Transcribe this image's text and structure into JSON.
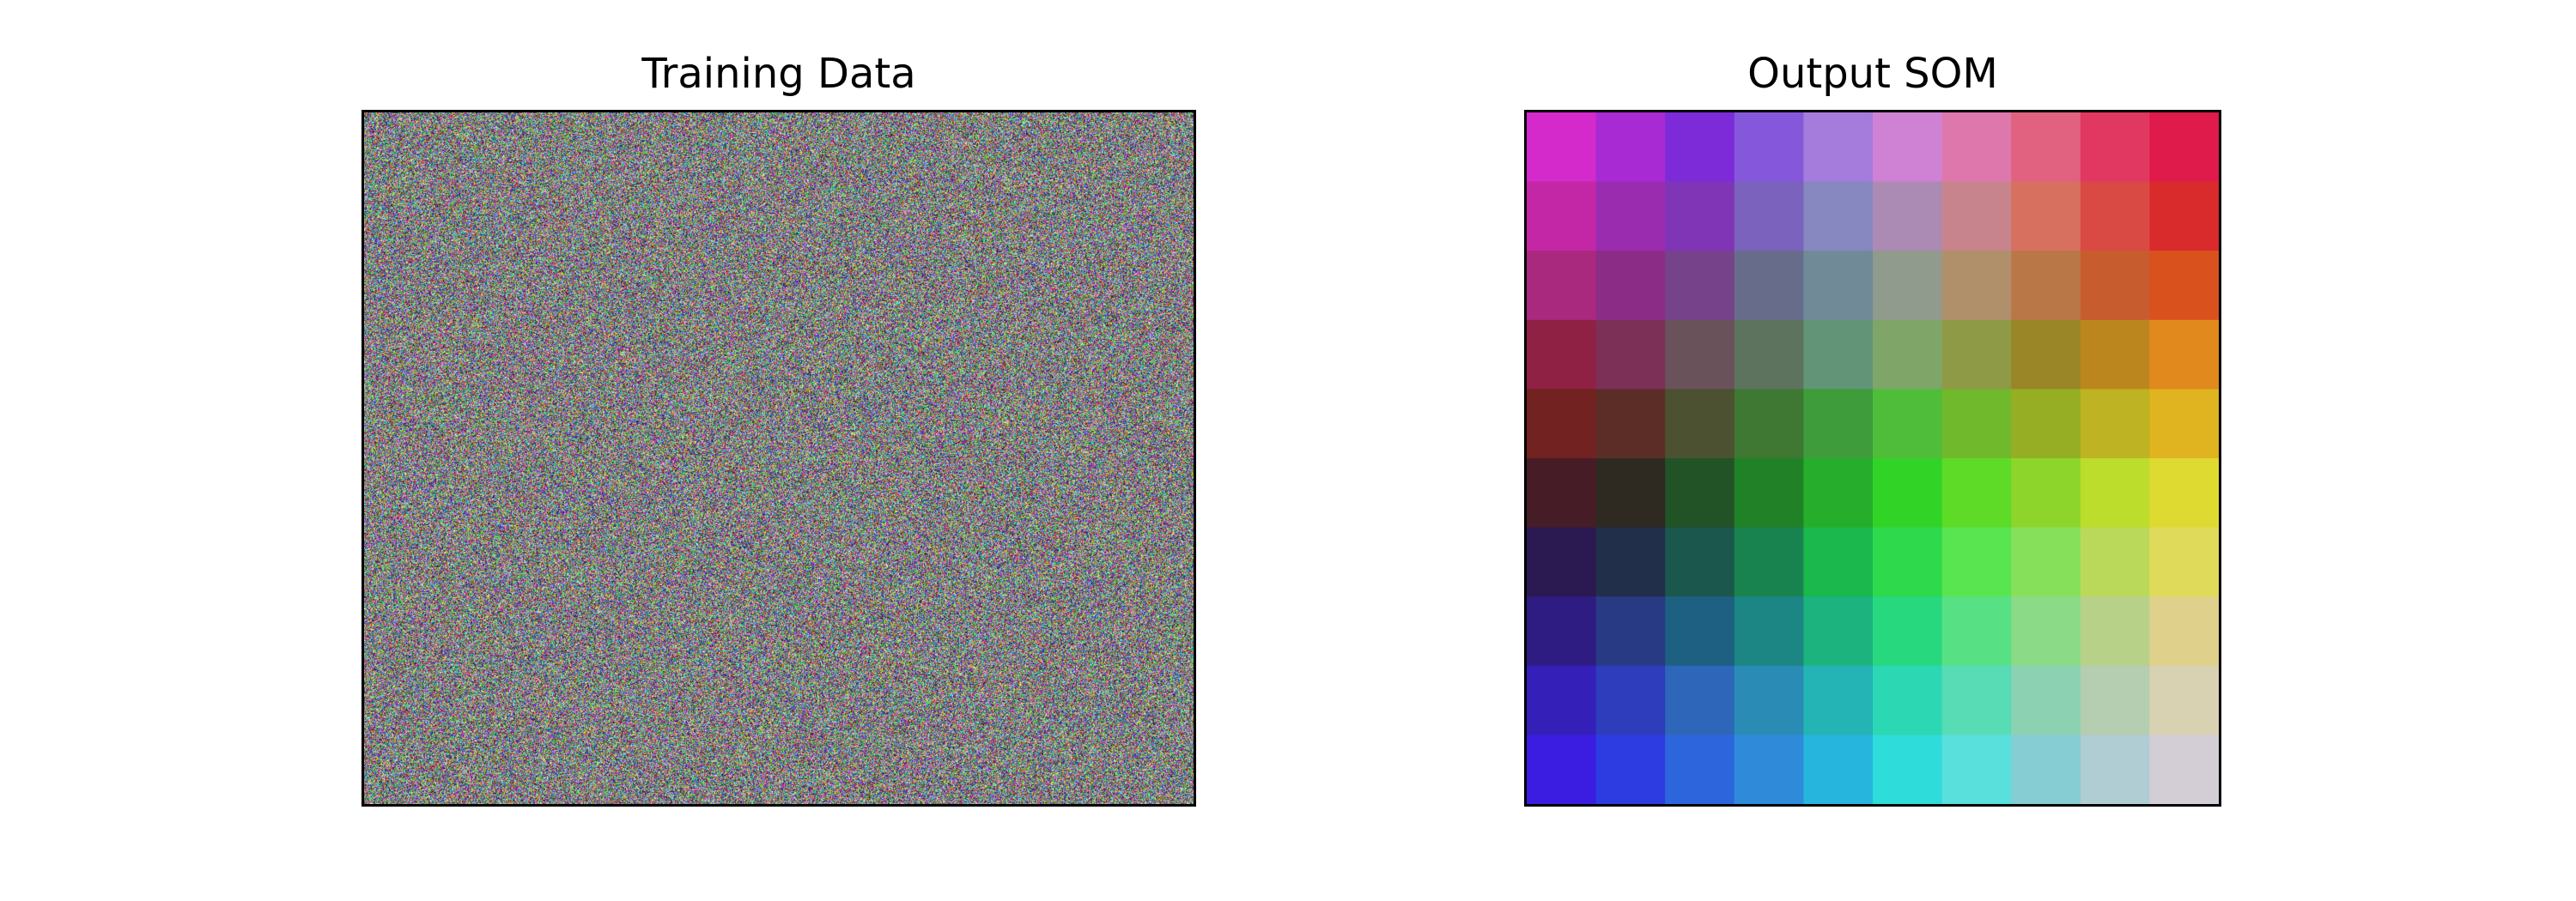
{
  "chart_data": [
    {
      "type": "heatmap",
      "title": "Training Data",
      "description_kind": "random RGB noise image",
      "axes_visible": false
    },
    {
      "type": "heatmap",
      "title": "Output SOM",
      "rows": 10,
      "cols": 10,
      "axes_visible": false,
      "cells": [
        [
          "#d42acb",
          "#a82ad3",
          "#7d2bd9",
          "#8558db",
          "#a57bdc",
          "#cf82d4",
          "#de78ac",
          "#e06180",
          "#e13861",
          "#de1b4b"
        ],
        [
          "#c427a5",
          "#9a2cb0",
          "#7f35b5",
          "#7b62bd",
          "#8888c1",
          "#ab8ab3",
          "#c8848d",
          "#d8705f",
          "#da4a45",
          "#d92b2c"
        ],
        [
          "#a9297e",
          "#8b2d86",
          "#76438b",
          "#686c8b",
          "#708a98",
          "#919b8d",
          "#b08f6b",
          "#b97747",
          "#c75d2e",
          "#d9521e"
        ],
        [
          "#8e2144",
          "#7c3058",
          "#6a525b",
          "#5d735e",
          "#629577",
          "#7fa569",
          "#8f9a46",
          "#9a8626",
          "#bb861e",
          "#e2891e"
        ],
        [
          "#732222",
          "#5c2d27",
          "#4b5131",
          "#3f7832",
          "#3f9c3b",
          "#4fbd3a",
          "#71b92c",
          "#95ae24",
          "#beb322",
          "#e0b321"
        ],
        [
          "#461c27",
          "#2e2a22",
          "#225327",
          "#218126",
          "#26ad2b",
          "#31d327",
          "#5ddb27",
          "#8ed52b",
          "#bcdd2b",
          "#dfda32"
        ],
        [
          "#2b1952",
          "#222f4a",
          "#1b574d",
          "#19834f",
          "#1ab84d",
          "#2ed94c",
          "#58e550",
          "#87e05a",
          "#bad95a",
          "#e0da5b"
        ],
        [
          "#2f1c82",
          "#283a83",
          "#1d6081",
          "#1b8683",
          "#1db37e",
          "#28d87e",
          "#58e184",
          "#8bda87",
          "#b8d189",
          "#dfd08c"
        ],
        [
          "#351fb9",
          "#2d3dbc",
          "#2e67b9",
          "#2a8bb5",
          "#24b4b5",
          "#2cd8b3",
          "#57dcb6",
          "#8dd1b3",
          "#b5cdb0",
          "#d8d2b3"
        ],
        [
          "#3a1de0",
          "#2d3ce0",
          "#2d66dc",
          "#2f8bd9",
          "#26b5dc",
          "#2edcda",
          "#59dfdc",
          "#86ccd3",
          "#afcdd2",
          "#d3ced6"
        ]
      ]
    }
  ]
}
